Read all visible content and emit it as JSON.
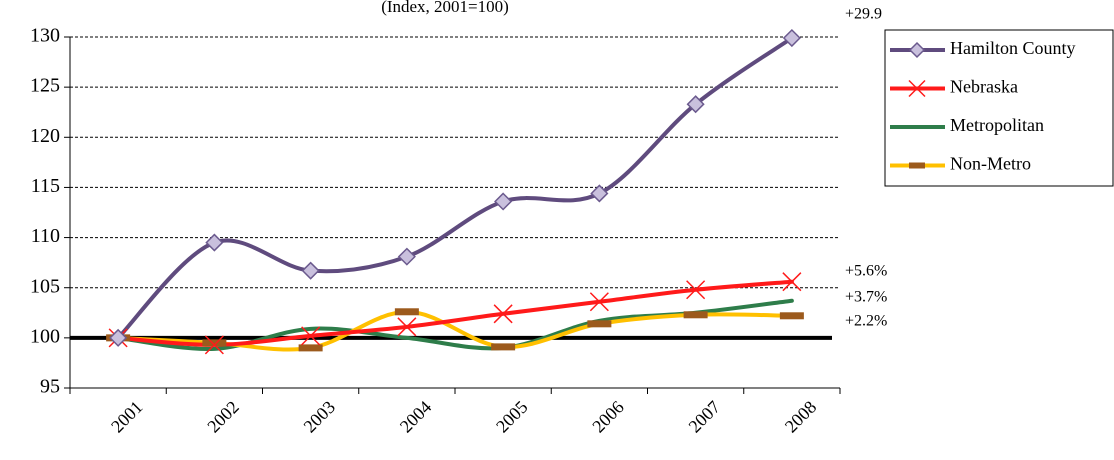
{
  "chart_data": {
    "type": "line",
    "subtitle": "(Index, 2001=100)",
    "categories": [
      "2001",
      "2002",
      "2003",
      "2004",
      "2005",
      "2006",
      "2007",
      "2008"
    ],
    "series": [
      {
        "name": "Hamilton County",
        "color": "#5f4b7e",
        "marker": "diamond",
        "values": [
          100,
          109.5,
          106.7,
          108.1,
          113.6,
          114.4,
          123.3,
          129.9
        ]
      },
      {
        "name": "Nebraska",
        "color": "#ff1a1a",
        "marker": "x",
        "values": [
          100,
          99.3,
          100.2,
          101.1,
          102.4,
          103.6,
          104.8,
          105.6
        ]
      },
      {
        "name": "Metropolitan",
        "color": "#2e7d4a",
        "marker": "none",
        "values": [
          100,
          98.9,
          100.9,
          100.0,
          99.0,
          101.7,
          102.5,
          103.7
        ]
      },
      {
        "name": "Non-Metro",
        "color": "#ffc000",
        "marker": "dash",
        "values": [
          100,
          99.5,
          99.0,
          102.6,
          99.1,
          101.4,
          102.3,
          102.2
        ]
      }
    ],
    "annotations": [
      "+29.9",
      "+5.6%",
      "+3.7%",
      "+2.2%"
    ],
    "reference_line": 100,
    "ylim": [
      95,
      130
    ],
    "yticks": [
      95,
      100,
      105,
      110,
      115,
      120,
      125,
      130
    ],
    "grid": true,
    "smooth": true,
    "legend": "right"
  }
}
